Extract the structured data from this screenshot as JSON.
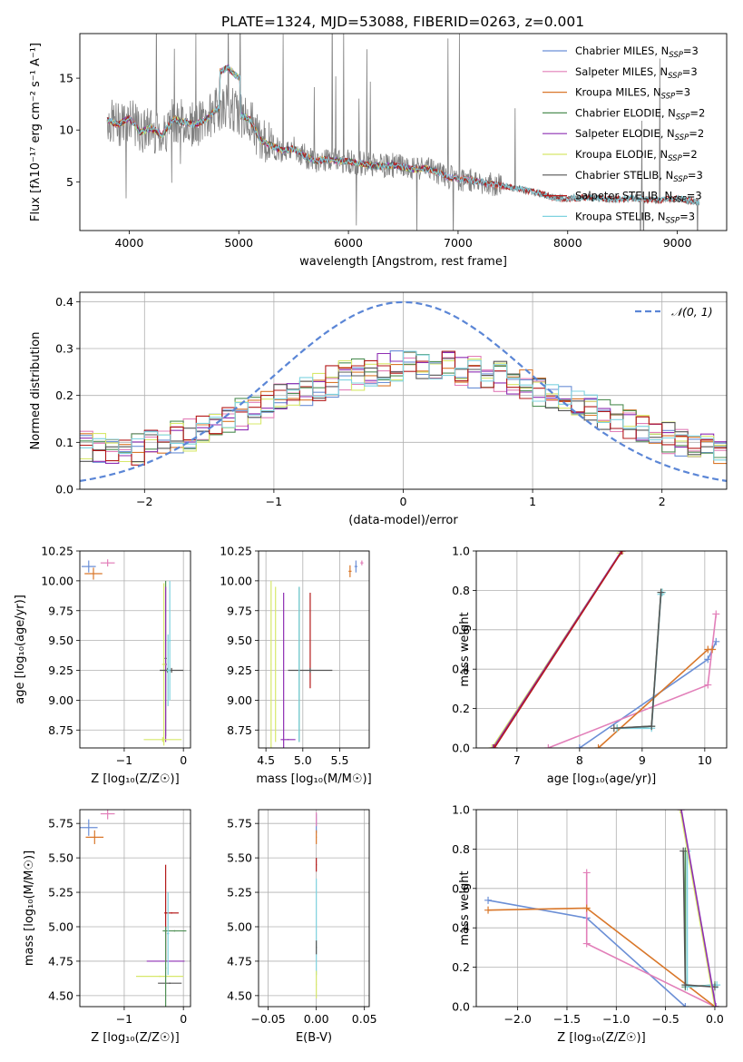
{
  "page": {
    "title": "PLATE=1324, MJD=53088, FIBERID=0263, z=0.001"
  },
  "colors": {
    "Chabrier MILES": "#6b8fd6",
    "Salpeter MILES": "#e27fb9",
    "Kroupa MILES": "#d9772a",
    "Chabrier ELODIE": "#4f8f55",
    "Salpeter ELODIE": "#8e2fb3",
    "Kroupa ELODIE": "#d7e86a",
    "Chabrier STELIB": "#555555",
    "Salpeter STELIB": "#b41a1a",
    "Kroupa STELIB": "#7fd3e0",
    "data": "#808080",
    "normal": "#5b86d6"
  },
  "chart_data": [
    {
      "id": "spectrum",
      "type": "line",
      "title": "PLATE=1324, MJD=53088, FIBERID=0263, z=0.001",
      "xlabel": "wavelength [Angstrom, rest frame]",
      "ylabel": "Flux [fλ10⁻¹⁷ erg cm⁻² s⁻¹ A⁻¹]",
      "xlim": [
        3550,
        9450
      ],
      "ylim": [
        0.3,
        19.3
      ],
      "xticks": [
        "4000",
        "5000",
        "6000",
        "7000",
        "8000",
        "9000"
      ],
      "xtick_values": [
        4000,
        5000,
        6000,
        7000,
        8000,
        9000
      ],
      "yticks": [
        "5",
        "10",
        "15"
      ],
      "ytick_values": [
        5,
        10,
        15
      ],
      "grid": false,
      "legend_position": "top-right",
      "legend": [
        {
          "name": "Chabrier MILES, N",
          "sub": "SSP",
          "eq": "=3",
          "color": "#6b8fd6"
        },
        {
          "name": "Salpeter MILES, N",
          "sub": "SSP",
          "eq": "=3",
          "color": "#e27fb9"
        },
        {
          "name": "Kroupa MILES, N",
          "sub": "SSP",
          "eq": "=3",
          "color": "#d9772a"
        },
        {
          "name": "Chabrier ELODIE, N",
          "sub": "SSP",
          "eq": "=2",
          "color": "#4f8f55"
        },
        {
          "name": "Salpeter ELODIE, N",
          "sub": "SSP",
          "eq": "=2",
          "color": "#8e2fb3"
        },
        {
          "name": "Kroupa ELODIE, N",
          "sub": "SSP",
          "eq": "=2",
          "color": "#d7e86a"
        },
        {
          "name": "Chabrier STELIB, N",
          "sub": "SSP",
          "eq": "=3",
          "color": "#555555"
        },
        {
          "name": "Salpeter STELIB, N",
          "sub": "SSP",
          "eq": "=3",
          "color": "#b41a1a"
        },
        {
          "name": "Kroupa STELIB, N",
          "sub": "SSP",
          "eq": "=3",
          "color": "#7fd3e0"
        }
      ],
      "data_series": {
        "name": "data",
        "x": [
          3800,
          3900,
          4000,
          4100,
          4200,
          4300,
          4400,
          4500,
          4600,
          4700,
          4800,
          4900,
          5000,
          5100,
          5200,
          5300,
          5400,
          5500,
          5600,
          5700,
          5800,
          5900,
          6000,
          6100,
          6200,
          6300,
          6400,
          6500,
          6600,
          6700,
          6800,
          6900,
          7000,
          7100,
          7200,
          7300,
          7400,
          7500,
          7600,
          7700,
          7800,
          7900,
          8000,
          8200,
          8400,
          8600,
          8800,
          9000,
          9200
        ],
        "y": [
          11.0,
          10.5,
          11.2,
          9.8,
          10.2,
          9.5,
          11.0,
          10.8,
          10.5,
          11.0,
          12.0,
          12.5,
          11.5,
          11.0,
          9.0,
          8.5,
          8.0,
          8.2,
          7.5,
          7.0,
          7.2,
          7.0,
          7.0,
          6.8,
          6.6,
          6.5,
          6.6,
          6.4,
          6.2,
          6.3,
          6.0,
          5.5,
          5.3,
          5.2,
          5.0,
          4.8,
          4.6,
          4.4,
          4.2,
          4.0,
          3.7,
          3.4,
          3.4,
          3.5,
          3.3,
          3.4,
          3.2,
          3.4,
          3.0
        ]
      }
    },
    {
      "id": "residuals",
      "type": "step",
      "xlabel": "(data-model)/error",
      "ylabel": "Normed distribution",
      "xlim": [
        -2.5,
        2.5
      ],
      "ylim": [
        0,
        0.42
      ],
      "xticks": [
        "−2",
        "−1",
        "0",
        "1",
        "2"
      ],
      "xtick_values": [
        -2,
        -1,
        0,
        1,
        2
      ],
      "yticks": [
        "0.0",
        "0.1",
        "0.2",
        "0.3",
        "0.4"
      ],
      "ytick_values": [
        0.0,
        0.1,
        0.2,
        0.3,
        0.4
      ],
      "grid": true,
      "legend_position": "top-right",
      "legend_label": "𝒩(0, 1)",
      "normal_curve": {
        "mean": 0,
        "sigma": 1
      },
      "bin_edges_start": -2.5,
      "bin_width": 0.1,
      "histogram_template": [
        0.09,
        0.09,
        0.085,
        0.08,
        0.085,
        0.095,
        0.1,
        0.11,
        0.115,
        0.125,
        0.14,
        0.15,
        0.16,
        0.17,
        0.18,
        0.19,
        0.2,
        0.21,
        0.22,
        0.23,
        0.24,
        0.245,
        0.25,
        0.255,
        0.26,
        0.26,
        0.265,
        0.26,
        0.26,
        0.255,
        0.25,
        0.245,
        0.24,
        0.23,
        0.22,
        0.21,
        0.2,
        0.19,
        0.18,
        0.17,
        0.16,
        0.15,
        0.14,
        0.13,
        0.12,
        0.11,
        0.1,
        0.095,
        0.09,
        0.085
      ]
    },
    {
      "id": "age_vs_Z",
      "type": "errorbar",
      "xlabel": "Z [log₁₀(Z/Z☉)]",
      "ylabel": "age [log₁₀(age/yr)]",
      "xlim": [
        -1.75,
        0.12
      ],
      "ylim": [
        8.6,
        10.25
      ],
      "xticks": [
        "−1",
        "0"
      ],
      "xtick_values": [
        -1,
        0
      ],
      "yticks": [
        "8.75",
        "9.00",
        "9.25",
        "9.50",
        "9.75",
        "10.00",
        "10.25"
      ],
      "ytick_values": [
        8.75,
        9.0,
        9.25,
        9.5,
        9.75,
        10.0,
        10.25
      ],
      "grid": true,
      "points": [
        {
          "x": -1.6,
          "y": 10.12,
          "xerr": 0.12,
          "yerr": 0.05,
          "color": "#6b8fd6"
        },
        {
          "x": -1.28,
          "y": 10.15,
          "xerr": 0.12,
          "yerr": 0.03,
          "color": "#e27fb9"
        },
        {
          "x": -1.52,
          "y": 10.06,
          "xerr": 0.15,
          "yerr": 0.05,
          "color": "#d9772a"
        },
        {
          "x": -0.3,
          "y": 9.35,
          "xerr": 0.02,
          "yerr": 0.65,
          "color": "#4f8f55"
        },
        {
          "x": -0.3,
          "y": 9.3,
          "xerr": 0.02,
          "yerr": 0.65,
          "color": "#8e2fb3"
        },
        {
          "x": -0.33,
          "y": 9.3,
          "xerr": 0.03,
          "yerr": 0.68,
          "color": "#d7e86a"
        },
        {
          "x": -0.27,
          "y": 9.25,
          "xerr": 0.05,
          "yerr": 0.02,
          "color": "#555555"
        },
        {
          "x": -0.2,
          "y": 9.25,
          "xerr": 0.2,
          "yerr": 0.02,
          "color": "#555555"
        },
        {
          "x": -0.35,
          "y": 8.67,
          "xerr": 0.32,
          "yerr": 0.02,
          "color": "#d7e86a"
        },
        {
          "x": -0.26,
          "y": 9.25,
          "xerr": 0.02,
          "yerr": 0.3,
          "color": "#7fd3e0"
        },
        {
          "x": -0.23,
          "y": 9.5,
          "xerr": 0.02,
          "yerr": 0.5,
          "color": "#7fd3e0"
        }
      ]
    },
    {
      "id": "age_vs_mass",
      "type": "errorbar",
      "xlabel": "mass [log₁₀(M/M☉)]",
      "ylabel": "",
      "xlim": [
        4.4,
        5.9
      ],
      "ylim": [
        8.6,
        10.25
      ],
      "xticks": [
        "4.5",
        "5.0",
        "5.5"
      ],
      "xtick_values": [
        4.5,
        5.0,
        5.5
      ],
      "yticks": [
        "8.75",
        "9.00",
        "9.25",
        "9.50",
        "9.75",
        "10.00",
        "10.25"
      ],
      "ytick_values": [
        8.75,
        9.0,
        9.25,
        9.5,
        9.75,
        10.0,
        10.25
      ],
      "grid": true,
      "points": [
        {
          "x": 5.72,
          "y": 10.12,
          "xerr": 0.02,
          "yerr": 0.05,
          "color": "#6b8fd6"
        },
        {
          "x": 5.8,
          "y": 10.15,
          "xerr": 0.02,
          "yerr": 0.02,
          "color": "#e27fb9"
        },
        {
          "x": 5.64,
          "y": 10.08,
          "xerr": 0.02,
          "yerr": 0.05,
          "color": "#d9772a"
        },
        {
          "x": 4.57,
          "y": 9.3,
          "xerr": 0.005,
          "yerr": 0.7,
          "color": "#d7e86a"
        },
        {
          "x": 4.63,
          "y": 9.3,
          "xerr": 0.005,
          "yerr": 0.65,
          "color": "#d7e86a"
        },
        {
          "x": 4.74,
          "y": 9.25,
          "xerr": 0.005,
          "yerr": 0.65,
          "color": "#8e2fb3"
        },
        {
          "x": 4.95,
          "y": 9.3,
          "xerr": 0.005,
          "yerr": 0.65,
          "color": "#4f8f55"
        },
        {
          "x": 5.1,
          "y": 9.5,
          "xerr": 0.005,
          "yerr": 0.4,
          "color": "#b41a1a"
        },
        {
          "x": 5.1,
          "y": 9.25,
          "xerr": 0.3,
          "yerr": 0.02,
          "color": "#555555"
        },
        {
          "x": 4.95,
          "y": 9.3,
          "xerr": 0.005,
          "yerr": 0.65,
          "color": "#7fd3e0"
        },
        {
          "x": 4.8,
          "y": 8.67,
          "xerr": 0.1,
          "yerr": 0.005,
          "color": "#8e2fb3"
        }
      ]
    },
    {
      "id": "weight_vs_age",
      "type": "line",
      "xlabel": "age [log₁₀(age/yr)]",
      "ylabel": "mass weight",
      "xlim": [
        6.35,
        10.35
      ],
      "ylim": [
        0,
        1
      ],
      "xticks": [
        "7",
        "8",
        "9",
        "10"
      ],
      "xtick_values": [
        7,
        8,
        9,
        10
      ],
      "yticks": [
        "0.0",
        "0.2",
        "0.4",
        "0.6",
        "0.8",
        "1.0"
      ],
      "ytick_values": [
        0.0,
        0.2,
        0.4,
        0.6,
        0.8,
        1.0
      ],
      "grid": true,
      "series": [
        {
          "color": "#6b8fd6",
          "x": [
            8.0,
            10.05,
            10.18
          ],
          "y": [
            0.0,
            0.45,
            0.54
          ]
        },
        {
          "color": "#e27fb9",
          "x": [
            7.5,
            10.05,
            10.18
          ],
          "y": [
            0.0,
            0.32,
            0.68
          ]
        },
        {
          "color": "#d9772a",
          "x": [
            8.3,
            10.05,
            10.12
          ],
          "y": [
            0.0,
            0.5,
            0.5
          ]
        },
        {
          "color": "#4f8f55",
          "x": [
            8.6,
            9.15,
            9.3,
            9.32
          ],
          "y": [
            0.1,
            0.11,
            0.79,
            0.79
          ]
        },
        {
          "color": "#7fd3e0",
          "x": [
            8.6,
            9.15,
            9.3,
            9.32
          ],
          "y": [
            0.1,
            0.1,
            0.78,
            0.79
          ]
        },
        {
          "color": "#555555",
          "x": [
            8.55,
            9.15,
            9.3
          ],
          "y": [
            0.1,
            0.11,
            0.79
          ]
        },
        {
          "color": "#d7e86a",
          "x": [
            6.6,
            8.65
          ],
          "y": [
            0.0,
            0.99
          ]
        },
        {
          "color": "#8e2fb3",
          "x": [
            6.62,
            8.67
          ],
          "y": [
            0.0,
            1.0
          ]
        },
        {
          "color": "#b41a1a",
          "x": [
            6.64,
            8.68
          ],
          "y": [
            0.0,
            1.0
          ]
        }
      ]
    },
    {
      "id": "mass_vs_Z",
      "type": "errorbar",
      "xlabel": "Z [log₁₀(Z/Z☉)]",
      "ylabel": "mass [log₁₀(M/M☉)]",
      "xlim": [
        -1.75,
        0.12
      ],
      "ylim": [
        4.42,
        5.85
      ],
      "xticks": [
        "−1",
        "0"
      ],
      "xtick_values": [
        -1,
        0
      ],
      "yticks": [
        "4.50",
        "4.75",
        "5.00",
        "5.25",
        "5.50",
        "5.75"
      ],
      "ytick_values": [
        4.5,
        4.75,
        5.0,
        5.25,
        5.5,
        5.75
      ],
      "grid": true,
      "points": [
        {
          "x": -1.6,
          "y": 5.72,
          "xerr": 0.15,
          "yerr": 0.06,
          "color": "#6b8fd6"
        },
        {
          "x": -1.28,
          "y": 5.82,
          "xerr": 0.12,
          "yerr": 0.04,
          "color": "#e27fb9"
        },
        {
          "x": -1.5,
          "y": 5.65,
          "xerr": 0.15,
          "yerr": 0.05,
          "color": "#d9772a"
        },
        {
          "x": -0.3,
          "y": 4.75,
          "xerr": 0.32,
          "yerr": 0.005,
          "color": "#8e2fb3"
        },
        {
          "x": -0.4,
          "y": 4.64,
          "xerr": 0.4,
          "yerr": 0.005,
          "color": "#d7e86a"
        },
        {
          "x": -0.23,
          "y": 4.59,
          "xerr": 0.2,
          "yerr": 0.005,
          "color": "#555555"
        },
        {
          "x": -0.3,
          "y": 5.1,
          "xerr": 0.02,
          "yerr": 0.35,
          "color": "#b41a1a"
        },
        {
          "x": -0.2,
          "y": 5.1,
          "xerr": 0.12,
          "yerr": 0.005,
          "color": "#b41a1a"
        },
        {
          "x": -0.15,
          "y": 4.97,
          "xerr": 0.2,
          "yerr": 0.005,
          "color": "#4f8f55"
        },
        {
          "x": -0.26,
          "y": 4.95,
          "xerr": 0.02,
          "yerr": 0.3,
          "color": "#7fd3e0"
        },
        {
          "x": -0.3,
          "y": 4.7,
          "xerr": 0.01,
          "yerr": 0.3,
          "color": "#4f8f55"
        }
      ]
    },
    {
      "id": "mass_vs_EBV",
      "type": "errorbar",
      "xlabel": "E(B-V)",
      "ylabel": "",
      "xlim": [
        -0.06,
        0.055
      ],
      "ylim": [
        4.42,
        5.85
      ],
      "xticks": [
        "−0.05",
        "0.00",
        "0.05"
      ],
      "xtick_values": [
        -0.05,
        0.0,
        0.05
      ],
      "yticks": [
        "4.50",
        "4.75",
        "5.00",
        "5.25",
        "5.50",
        "5.75"
      ],
      "ytick_values": [
        4.5,
        4.75,
        5.0,
        5.25,
        5.5,
        5.75
      ],
      "grid": true,
      "points": [
        {
          "x": 0.0,
          "y": 5.75,
          "xerr": 0.0005,
          "yerr": 0.07,
          "color": "#6b8fd6"
        },
        {
          "x": 0.0,
          "y": 5.78,
          "xerr": 0.0005,
          "yerr": 0.05,
          "color": "#e27fb9"
        },
        {
          "x": 0.0,
          "y": 5.65,
          "xerr": 0.0005,
          "yerr": 0.05,
          "color": "#d9772a"
        },
        {
          "x": 0.0,
          "y": 5.45,
          "xerr": 0.0005,
          "yerr": 0.05,
          "color": "#b41a1a"
        },
        {
          "x": 0.0,
          "y": 5.0,
          "xerr": 0.0005,
          "yerr": 0.35,
          "color": "#7fd3e0"
        },
        {
          "x": 0.0,
          "y": 4.85,
          "xerr": 0.0005,
          "yerr": 0.05,
          "color": "#555555"
        },
        {
          "x": 0.0,
          "y": 4.58,
          "xerr": 0.0005,
          "yerr": 0.1,
          "color": "#d7e86a"
        }
      ]
    },
    {
      "id": "weight_vs_Z",
      "type": "line",
      "xlabel": "Z [log₁₀(Z/Z☉)]",
      "ylabel": "mass weight",
      "xlim": [
        -2.42,
        0.12
      ],
      "ylim": [
        0,
        1
      ],
      "xticks": [
        "−2.0",
        "−1.5",
        "−1.0",
        "−0.5",
        "0.0"
      ],
      "xtick_values": [
        -2.0,
        -1.5,
        -1.0,
        -0.5,
        0.0
      ],
      "yticks": [
        "0.0",
        "0.2",
        "0.4",
        "0.6",
        "0.8",
        "1.0"
      ],
      "ytick_values": [
        0.0,
        0.2,
        0.4,
        0.6,
        0.8,
        1.0
      ],
      "grid": true,
      "series": [
        {
          "color": "#6b8fd6",
          "x": [
            -2.3,
            -1.3,
            -0.3
          ],
          "y": [
            0.54,
            0.45,
            0.0
          ]
        },
        {
          "color": "#e27fb9",
          "x": [
            -1.3,
            -1.3,
            0.0
          ],
          "y": [
            0.68,
            0.32,
            0.0
          ]
        },
        {
          "color": "#d9772a",
          "x": [
            -2.3,
            -1.3,
            0.0
          ],
          "y": [
            0.49,
            0.5,
            0.0
          ]
        },
        {
          "color": "#4f8f55",
          "x": [
            -0.3,
            -0.3,
            0.0
          ],
          "y": [
            0.79,
            0.1,
            0.11
          ]
        },
        {
          "color": "#7fd3e0",
          "x": [
            -0.28,
            -0.28,
            0.02
          ],
          "y": [
            0.79,
            0.1,
            0.11
          ]
        },
        {
          "color": "#555555",
          "x": [
            -0.32,
            -0.3,
            0.0
          ],
          "y": [
            0.79,
            0.11,
            0.1
          ]
        },
        {
          "color": "#d7e86a",
          "x": [
            -0.35,
            0.0
          ],
          "y": [
            1.0,
            0.0
          ]
        },
        {
          "color": "#8e2fb3",
          "x": [
            -0.34,
            0.01
          ],
          "y": [
            1.0,
            0.0
          ]
        }
      ]
    }
  ]
}
